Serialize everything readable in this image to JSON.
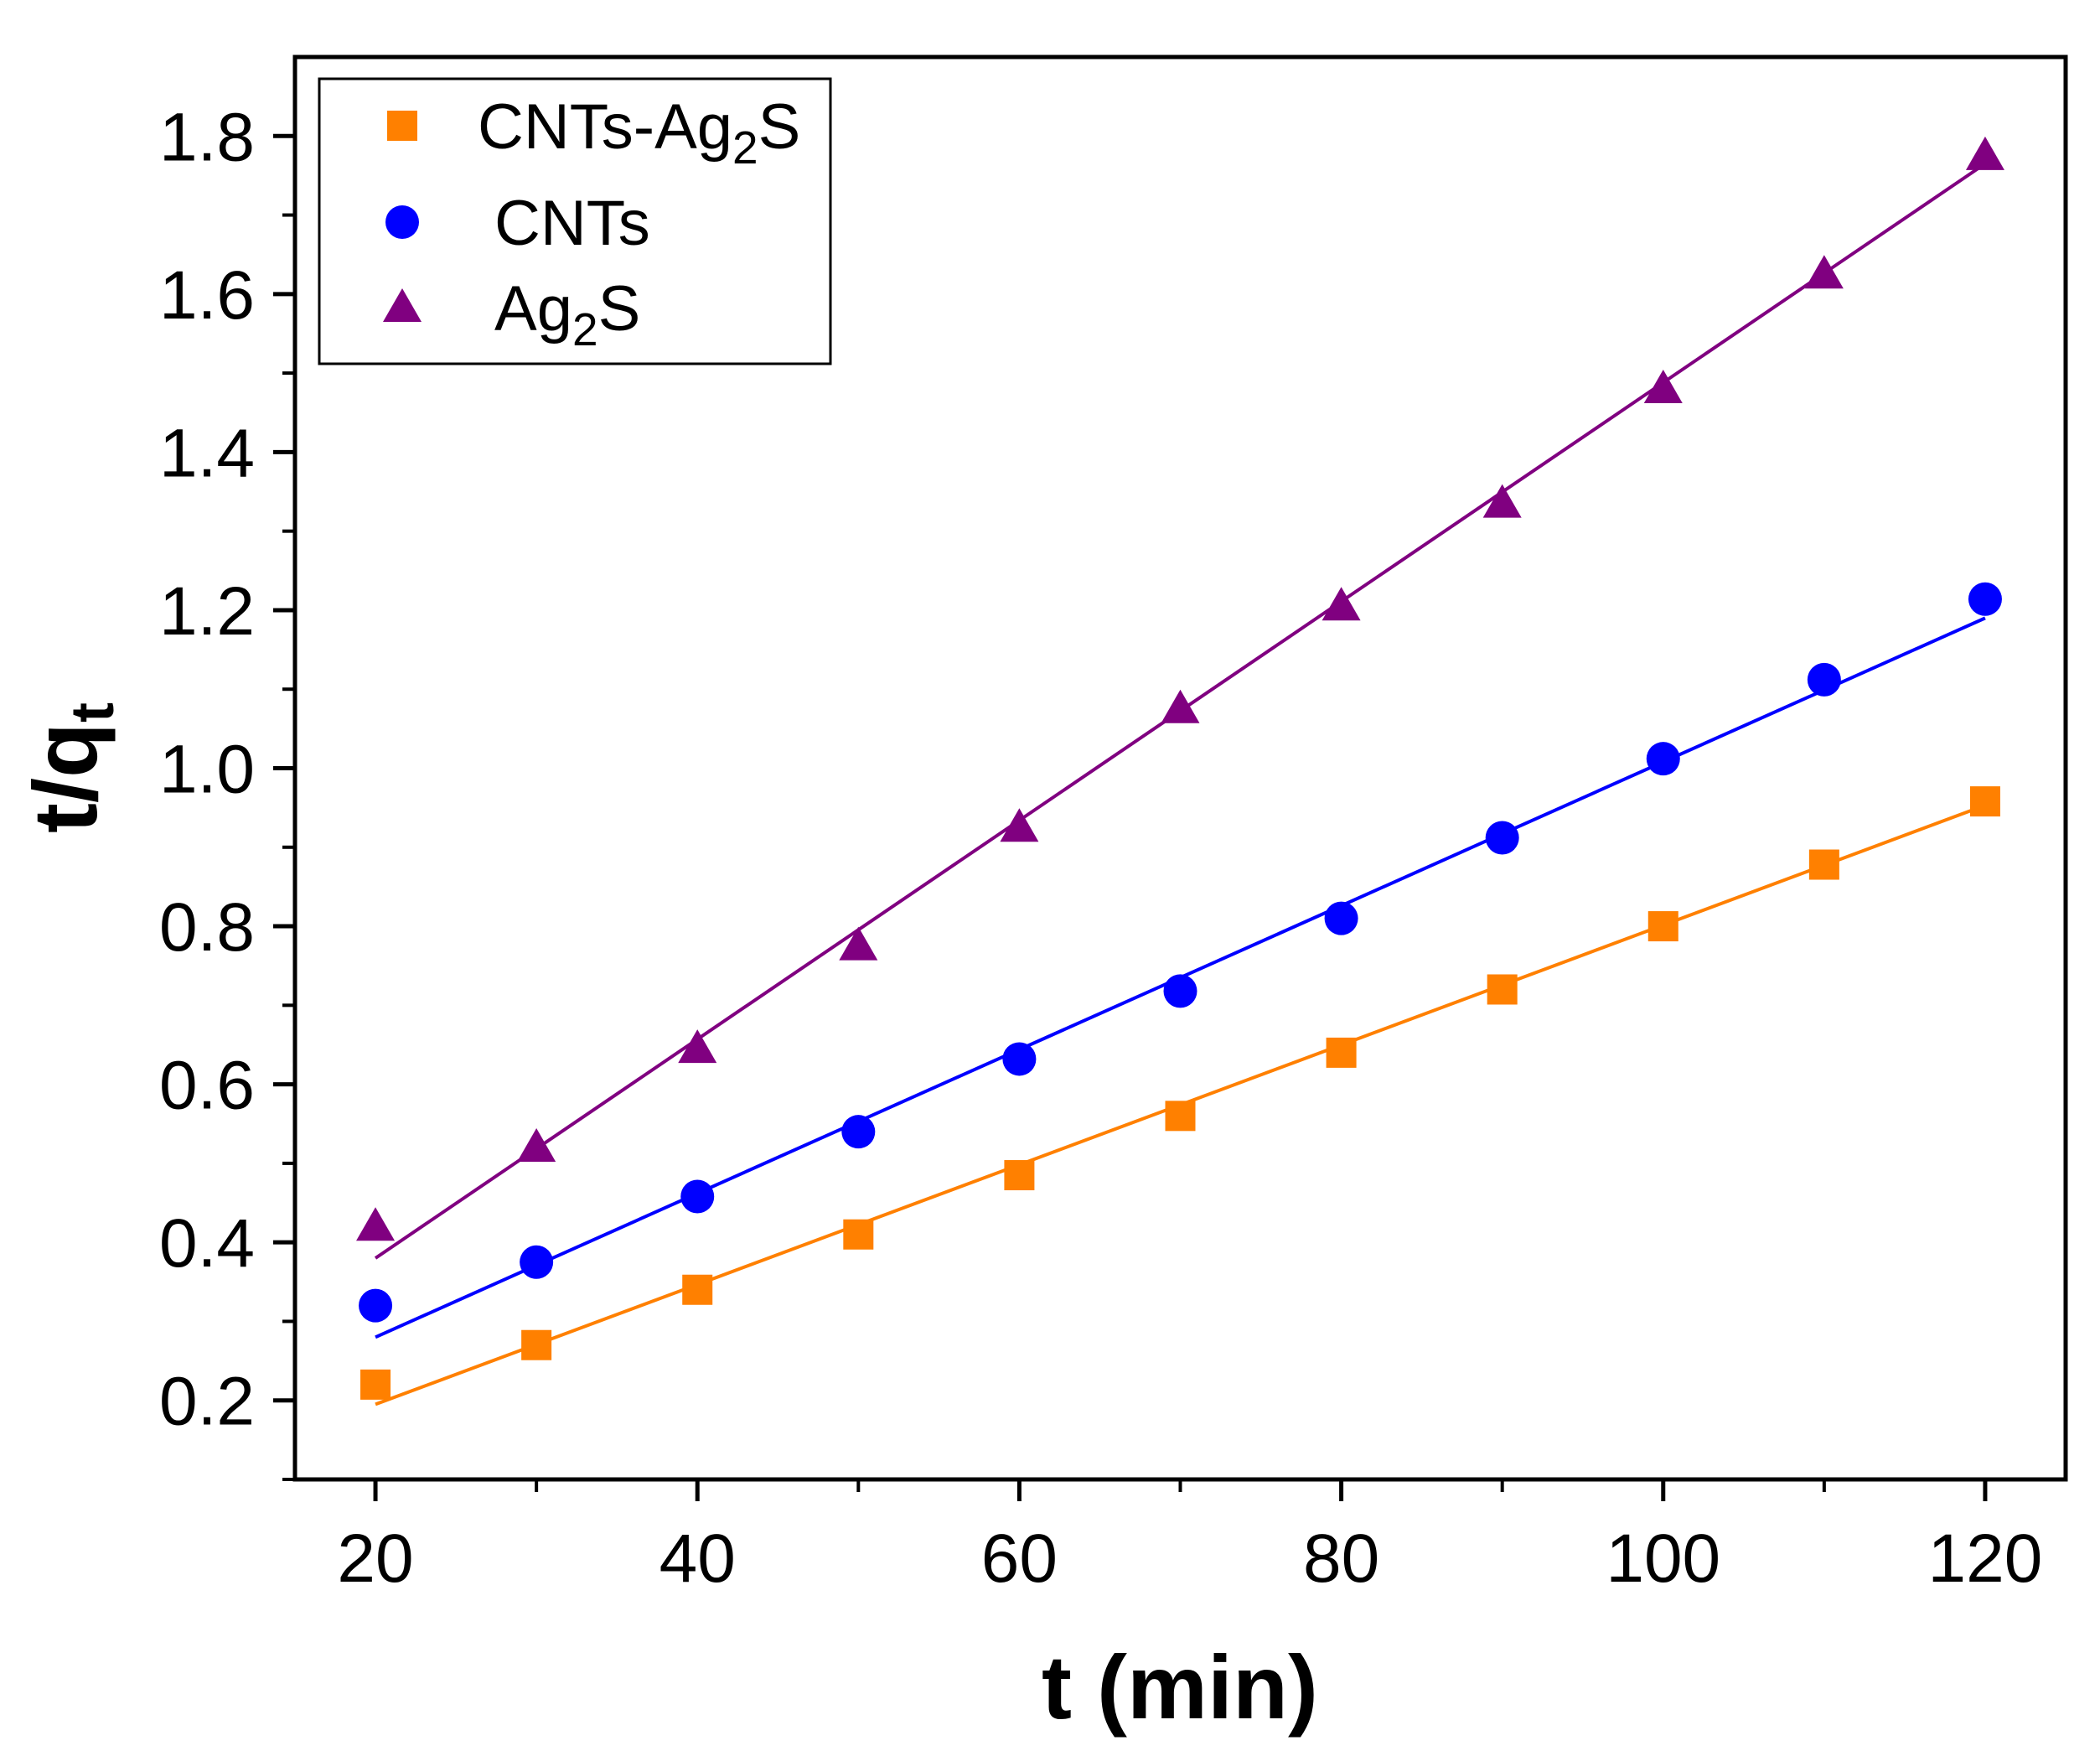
{
  "chart_data": {
    "type": "scatter",
    "title": "",
    "xlabel": "t (min)",
    "ylabel": {
      "main": "t/q",
      "sub": "t"
    },
    "xlim": [
      15,
      125
    ],
    "ylim": [
      0.1,
      1.9
    ],
    "xticks": [
      20,
      40,
      60,
      80,
      100,
      120
    ],
    "yticks": [
      0.2,
      0.4,
      0.6,
      0.8,
      1.0,
      1.2,
      1.4,
      1.6,
      1.8
    ],
    "xtick_labels": [
      "20",
      "40",
      "60",
      "80",
      "100",
      "120"
    ],
    "ytick_labels": [
      "0.2",
      "0.4",
      "0.6",
      "0.8",
      "1.0",
      "1.2",
      "1.4",
      "1.6",
      "1.8"
    ],
    "grid": false,
    "legend_position": "top-left",
    "x": [
      20,
      30,
      40,
      50,
      60,
      70,
      80,
      90,
      100,
      110,
      120
    ],
    "series": [
      {
        "name": "CNTs-Ag2S",
        "label_parts": [
          "CNTs-Ag",
          "2",
          "S"
        ],
        "marker": "square",
        "color": "#ff8000",
        "values": [
          0.22,
          0.27,
          0.34,
          0.41,
          0.485,
          0.56,
          0.64,
          0.72,
          0.8,
          0.878,
          0.958
        ],
        "fit": [
          0.195,
          0.953
        ]
      },
      {
        "name": "CNTs",
        "label_parts": [
          "CNTs",
          "",
          ""
        ],
        "marker": "circle",
        "color": "#0000ff",
        "values": [
          0.32,
          0.375,
          0.458,
          0.54,
          0.632,
          0.718,
          0.81,
          0.912,
          1.012,
          1.112,
          1.214
        ],
        "fit": [
          0.28,
          1.19
        ]
      },
      {
        "name": "Ag2S",
        "label_parts": [
          "Ag",
          "2",
          "S"
        ],
        "marker": "triangle",
        "color": "#800080",
        "values": [
          0.42,
          0.52,
          0.645,
          0.775,
          0.925,
          1.075,
          1.205,
          1.335,
          1.48,
          1.625,
          1.775
        ],
        "fit": [
          0.38,
          1.765
        ]
      }
    ]
  }
}
